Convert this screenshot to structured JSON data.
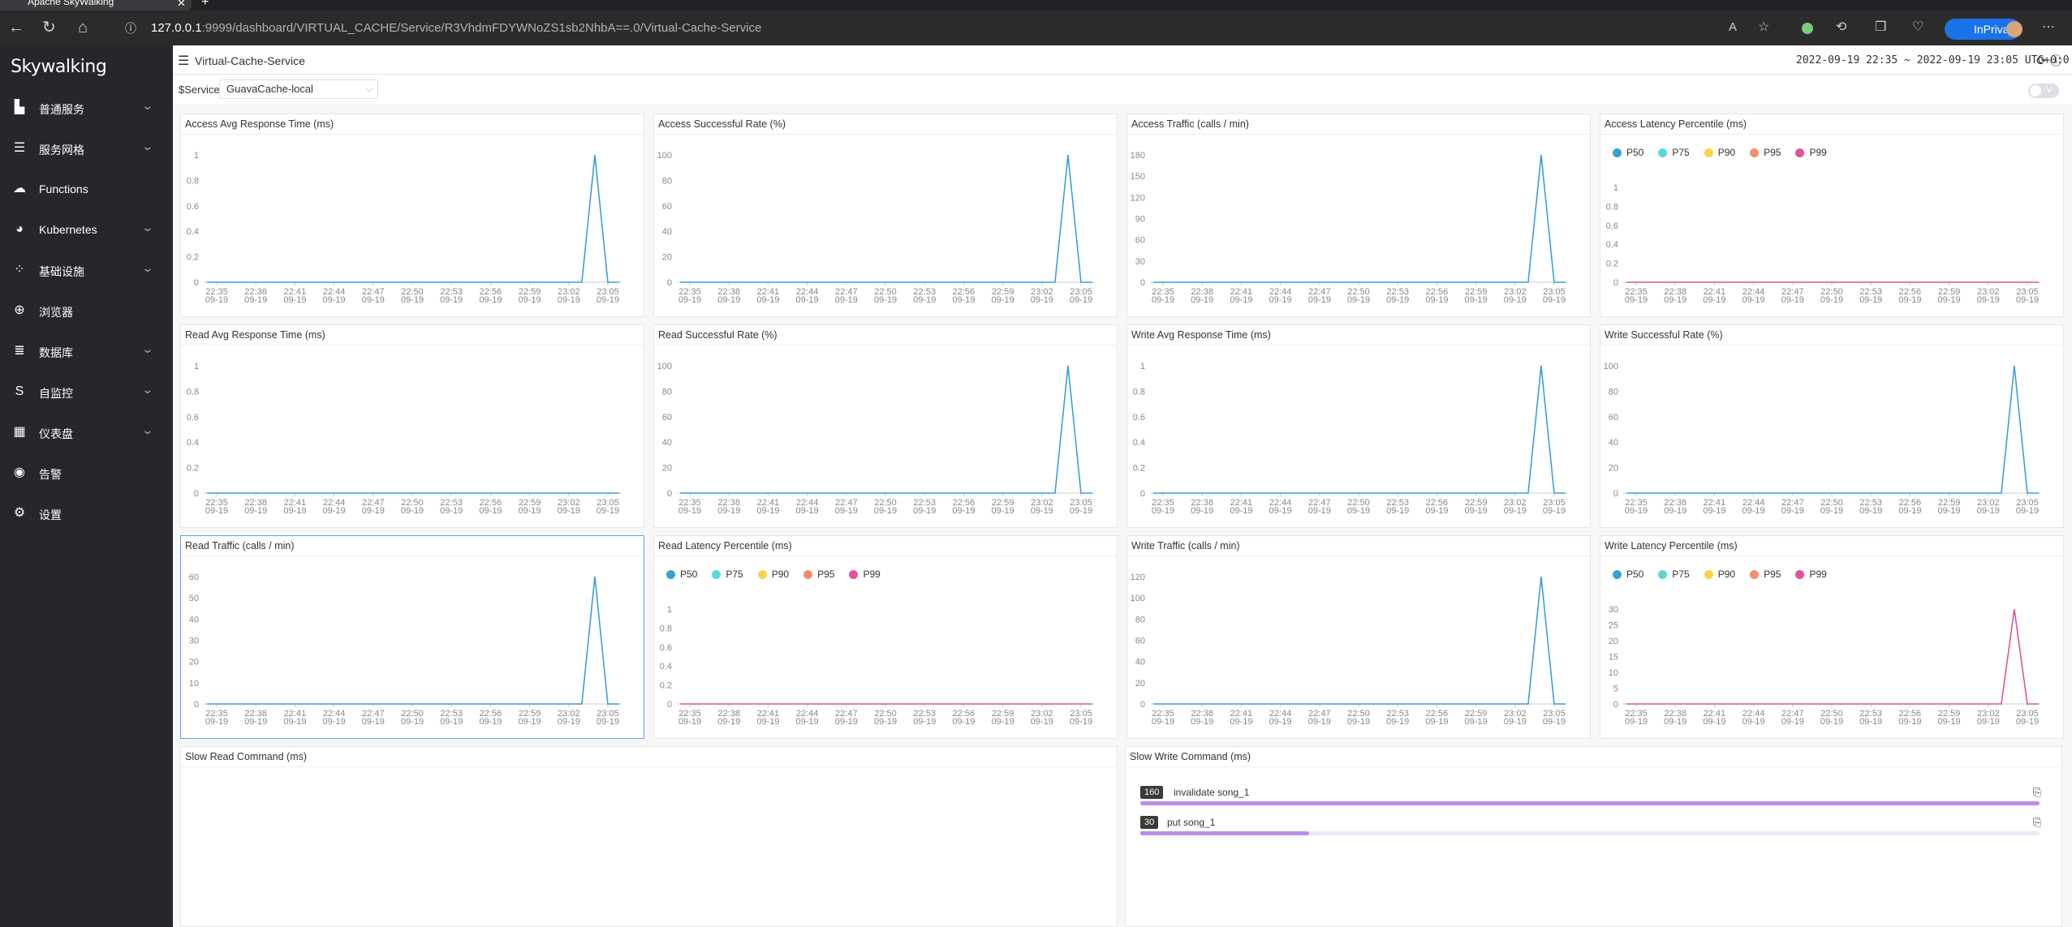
{
  "browser": {
    "tab_title": "Apache SkyWalking",
    "url_host": "127.0.0.1",
    "url_path": ":9999/dashboard/VIRTUAL_CACHE/Service/R3VhdmFDYWNoZS1sb2NhbA==.0/Virtual-Cache-Service",
    "inprivate_label": "InPrivate"
  },
  "sidebar": {
    "logo": "Skywalking",
    "items": [
      {
        "label": "普通服务",
        "icon": "chart-icon",
        "expandable": true
      },
      {
        "label": "服务网格",
        "icon": "mesh-icon",
        "expandable": true
      },
      {
        "label": "Functions",
        "icon": "cloud-icon",
        "expandable": false
      },
      {
        "label": "Kubernetes",
        "icon": "pie-icon",
        "expandable": true
      },
      {
        "label": "基础设施",
        "icon": "nodes-icon",
        "expandable": true
      },
      {
        "label": "浏览器",
        "icon": "globe-icon",
        "expandable": false
      },
      {
        "label": "数据库",
        "icon": "list-icon",
        "expandable": true
      },
      {
        "label": "自监控",
        "icon": "sw-icon",
        "expandable": true
      },
      {
        "label": "仪表盘",
        "icon": "dashboard-icon",
        "expandable": true
      },
      {
        "label": "告警",
        "icon": "alarm-icon",
        "expandable": false
      },
      {
        "label": "设置",
        "icon": "gear-icon",
        "expandable": false
      }
    ]
  },
  "header": {
    "page_title": "Virtual-Cache-Service",
    "time_range": "2022-09-19 22:35 ~ 2022-09-19 23:05",
    "timezone": "UTC+0:0"
  },
  "selector": {
    "label": "$Service",
    "value": "GuavaCache-local",
    "toggle_label": "V"
  },
  "x_axis": {
    "times": [
      "22:35",
      "22:38",
      "22:41",
      "22:44",
      "22:47",
      "22:50",
      "22:53",
      "22:56",
      "22:59",
      "23:02",
      "23:05"
    ],
    "date": "09-19"
  },
  "colors": {
    "series": "#3a9fd8",
    "P50": "#3a9fd8",
    "P75": "#5ad8d8",
    "P90": "#f7d54a",
    "P95": "#f28e6b",
    "P99": "#e0529c",
    "bar": "#b98ee8"
  },
  "percentile_legend": [
    "P50",
    "P75",
    "P90",
    "P95",
    "P99"
  ],
  "panels": [
    {
      "title": "Access Avg Response Time (ms)"
    },
    {
      "title": "Access Successful Rate (%)"
    },
    {
      "title": "Access Traffic (calls / min)"
    },
    {
      "title": "Access Latency Percentile (ms)"
    },
    {
      "title": "Read Avg Response Time (ms)"
    },
    {
      "title": "Read Successful Rate (%)"
    },
    {
      "title": "Write Avg Response Time (ms)"
    },
    {
      "title": "Write Successful Rate (%)"
    },
    {
      "title": "Read Traffic (calls / min)"
    },
    {
      "title": "Read Latency Percentile (ms)"
    },
    {
      "title": "Write Traffic (calls / min)"
    },
    {
      "title": "Write Latency Percentile (ms)"
    }
  ],
  "chart_data": [
    {
      "type": "line",
      "title": "Access Avg Response Time (ms)",
      "yticks": [
        "0",
        "0.2",
        "0.4",
        "0.6",
        "0.8",
        "1"
      ],
      "ylim": [
        0,
        1
      ],
      "series": [
        {
          "peak": 1
        }
      ]
    },
    {
      "type": "line",
      "title": "Access Successful Rate (%)",
      "yticks": [
        "0",
        "20",
        "40",
        "60",
        "80",
        "100"
      ],
      "ylim": [
        0,
        100
      ],
      "series": [
        {
          "peak": 100
        }
      ]
    },
    {
      "type": "line",
      "title": "Access Traffic (calls / min)",
      "yticks": [
        "0",
        "30",
        "60",
        "90",
        "120",
        "150",
        "180"
      ],
      "ylim": [
        0,
        180
      ],
      "series": [
        {
          "peak": 180
        }
      ]
    },
    {
      "type": "line",
      "title": "Access Latency Percentile (ms)",
      "yticks": [
        "0",
        "0.2",
        "0.4",
        "0.6",
        "0.8",
        "1"
      ],
      "ylim": [
        0,
        1
      ],
      "series": [
        {
          "name": "P99",
          "peak": 0
        }
      ]
    },
    {
      "type": "line",
      "title": "Read Avg Response Time (ms)",
      "yticks": [
        "0",
        "0.2",
        "0.4",
        "0.6",
        "0.8",
        "1"
      ],
      "ylim": [
        0,
        1
      ],
      "series": [
        {
          "peak": 0
        }
      ]
    },
    {
      "type": "line",
      "title": "Read Successful Rate (%)",
      "yticks": [
        "0",
        "20",
        "40",
        "60",
        "80",
        "100"
      ],
      "ylim": [
        0,
        100
      ],
      "series": [
        {
          "peak": 100
        }
      ]
    },
    {
      "type": "line",
      "title": "Write Avg Response Time (ms)",
      "yticks": [
        "0",
        "0.2",
        "0.4",
        "0.6",
        "0.8",
        "1"
      ],
      "ylim": [
        0,
        1
      ],
      "series": [
        {
          "peak": 1
        }
      ]
    },
    {
      "type": "line",
      "title": "Write Successful Rate (%)",
      "yticks": [
        "0",
        "20",
        "40",
        "60",
        "80",
        "100"
      ],
      "ylim": [
        0,
        100
      ],
      "series": [
        {
          "peak": 100
        }
      ]
    },
    {
      "type": "line",
      "title": "Read Traffic (calls / min)",
      "yticks": [
        "0",
        "10",
        "20",
        "30",
        "40",
        "50",
        "60"
      ],
      "ylim": [
        0,
        60
      ],
      "series": [
        {
          "peak": 60
        }
      ]
    },
    {
      "type": "line",
      "title": "Read Latency Percentile (ms)",
      "yticks": [
        "0",
        "0.2",
        "0.4",
        "0.6",
        "0.8",
        "1"
      ],
      "ylim": [
        0,
        1
      ],
      "series": [
        {
          "name": "P99",
          "peak": 0
        }
      ]
    },
    {
      "type": "line",
      "title": "Write Traffic (calls / min)",
      "yticks": [
        "0",
        "20",
        "40",
        "60",
        "80",
        "100",
        "120"
      ],
      "ylim": [
        0,
        120
      ],
      "series": [
        {
          "peak": 120
        }
      ]
    },
    {
      "type": "line",
      "title": "Write Latency Percentile (ms)",
      "yticks": [
        "0",
        "5",
        "10",
        "15",
        "20",
        "25",
        "30"
      ],
      "ylim": [
        0,
        30
      ],
      "series": [
        {
          "name": "P99",
          "peak": 30
        }
      ]
    }
  ],
  "slow_read": {
    "title": "Slow Read Command (ms)"
  },
  "slow_write": {
    "title": "Slow Write Command (ms)",
    "rows": [
      {
        "value": "160",
        "label": "invalidate song_1",
        "fraction": 1.0
      },
      {
        "value": "30",
        "label": "put song_1",
        "fraction": 0.1875
      }
    ]
  }
}
